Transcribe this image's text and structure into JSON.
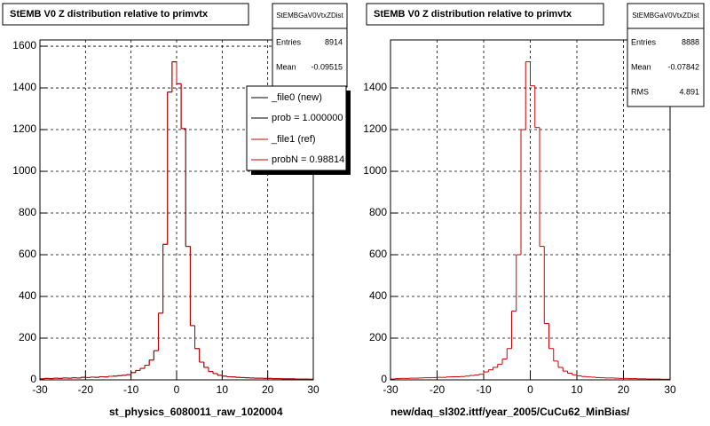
{
  "chart_data": [
    {
      "type": "histogram",
      "title": "StEMB V0 Z distribution relative to primvtx",
      "xlabel": "st_physics_6080011_raw_1020004",
      "bins": [
        -30,
        -29,
        -28,
        -27,
        -26,
        -25,
        -24,
        -23,
        -22,
        -21,
        -20,
        -19,
        -18,
        -17,
        -16,
        -15,
        -14,
        -13,
        -12,
        -11,
        -10,
        -9,
        -8,
        -7,
        -6,
        -5,
        -4,
        -3,
        -2,
        -1,
        0,
        1,
        2,
        3,
        4,
        5,
        6,
        7,
        8,
        9,
        10,
        11,
        12,
        13,
        14,
        15,
        16,
        17,
        18,
        19,
        20,
        21,
        22,
        23,
        24,
        25,
        26,
        27,
        28,
        29,
        30
      ],
      "series": [
        {
          "name": "_file0 (new)",
          "color": "#000000",
          "values": [
            5,
            7,
            6,
            8,
            7,
            9,
            8,
            10,
            9,
            12,
            11,
            13,
            12,
            15,
            14,
            17,
            18,
            20,
            22,
            25,
            35,
            45,
            55,
            70,
            95,
            140,
            320,
            650,
            1380,
            1525,
            1420,
            1205,
            640,
            260,
            150,
            85,
            60,
            40,
            30,
            22,
            18,
            15,
            14,
            12,
            11,
            10,
            9,
            8,
            8,
            7,
            7,
            6,
            6,
            5,
            5,
            5,
            4,
            4,
            4,
            3
          ]
        },
        {
          "name": "_file1 (ref)",
          "color": "#cc0000",
          "values": [
            5,
            7,
            6,
            8,
            7,
            9,
            8,
            10,
            9,
            12,
            11,
            13,
            12,
            15,
            14,
            17,
            18,
            20,
            22,
            25,
            35,
            45,
            55,
            70,
            95,
            140,
            320,
            650,
            1380,
            1525,
            1420,
            1205,
            640,
            260,
            150,
            85,
            60,
            40,
            30,
            22,
            18,
            15,
            14,
            12,
            11,
            10,
            9,
            8,
            8,
            7,
            7,
            6,
            6,
            5,
            5,
            5,
            4,
            4,
            4,
            3
          ]
        }
      ],
      "annotations": [
        "prob = 1.000000",
        "probN = 0.98814"
      ],
      "stats": {
        "title": "StEMBGaV0VtxZDist",
        "rows": [
          {
            "label": "Entries",
            "value": 8914
          },
          {
            "label": "Mean",
            "value": -0.09515
          }
        ]
      },
      "xlim": [
        -30,
        30
      ],
      "xticks": [
        -30,
        -20,
        -10,
        0,
        10,
        20,
        30
      ],
      "ylim": [
        0,
        1630
      ],
      "yticks": [
        0,
        200,
        400,
        600,
        800,
        1000,
        1200,
        1400,
        1600
      ],
      "grid": true
    },
    {
      "type": "histogram",
      "title": "StEMB V0 Z distribution relative to primvtx",
      "xlabel": "new/daq_sl302.ittf/year_2005/CuCu62_MinBias/",
      "bins": [
        -30,
        -29,
        -28,
        -27,
        -26,
        -25,
        -24,
        -23,
        -22,
        -21,
        -20,
        -19,
        -18,
        -17,
        -16,
        -15,
        -14,
        -13,
        -12,
        -11,
        -10,
        -9,
        -8,
        -7,
        -6,
        -5,
        -4,
        -3,
        -2,
        -1,
        0,
        1,
        2,
        3,
        4,
        5,
        6,
        7,
        8,
        9,
        10,
        11,
        12,
        13,
        14,
        15,
        16,
        17,
        18,
        19,
        20,
        21,
        22,
        23,
        24,
        25,
        26,
        27,
        28,
        29,
        30
      ],
      "series": [
        {
          "color": "#cc0000",
          "values": [
            4,
            6,
            7,
            7,
            8,
            8,
            9,
            10,
            10,
            11,
            12,
            12,
            14,
            15,
            15,
            16,
            18,
            21,
            23,
            27,
            38,
            48,
            60,
            75,
            100,
            150,
            330,
            600,
            1200,
            1525,
            1410,
            1210,
            640,
            270,
            150,
            90,
            60,
            42,
            32,
            24,
            19,
            16,
            14,
            13,
            11,
            10,
            9,
            9,
            8,
            7,
            7,
            6,
            6,
            5,
            5,
            4,
            4,
            4,
            3,
            3
          ]
        }
      ],
      "stats": {
        "title": "StEMBGaV0VtxZDist",
        "rows": [
          {
            "label": "Entries",
            "value": 8888
          },
          {
            "label": "Mean",
            "value": -0.07842
          },
          {
            "label": "RMS",
            "value": 4.891
          }
        ]
      },
      "xlim": [
        -30,
        30
      ],
      "xticks": [
        -30,
        -20,
        -10,
        0,
        10,
        20,
        30
      ],
      "ylim": [
        0,
        1630
      ],
      "yticks": [
        0,
        200,
        400,
        600,
        800,
        1000,
        1200,
        1400
      ],
      "grid": true
    }
  ]
}
